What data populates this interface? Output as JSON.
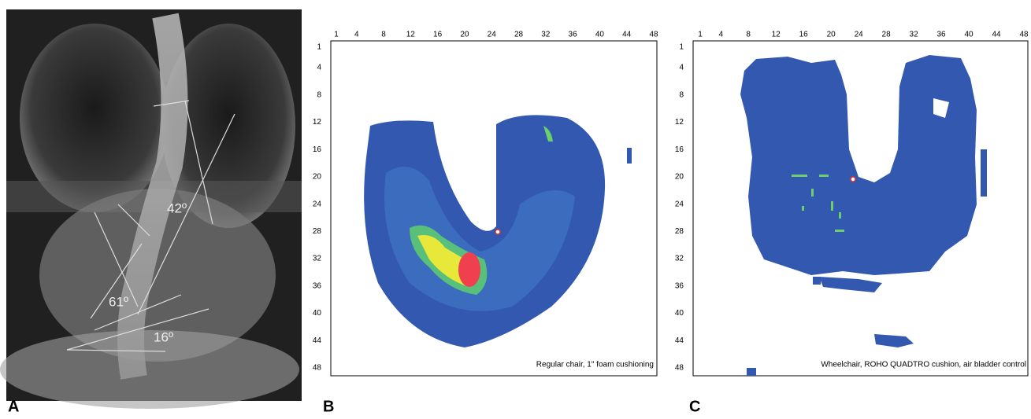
{
  "panels": [
    {
      "label": "A",
      "angles": [
        "42º",
        "61º",
        "16º"
      ]
    },
    {
      "label": "B",
      "caption": "Regular chair, 1\" foam cushioning",
      "xticks": [
        1,
        4,
        8,
        12,
        16,
        20,
        24,
        28,
        32,
        36,
        40,
        44,
        48
      ],
      "yticks": [
        1,
        4,
        8,
        12,
        16,
        20,
        24,
        28,
        32,
        36,
        40,
        44,
        48
      ]
    },
    {
      "label": "C",
      "caption": "Wheelchair, ROHO QUADTRO cushion, air bladder control",
      "xticks": [
        1,
        4,
        8,
        12,
        16,
        20,
        24,
        28,
        32,
        36,
        40,
        44,
        48
      ],
      "yticks": [
        1,
        4,
        8,
        12,
        16,
        20,
        24,
        28,
        32,
        36,
        40,
        44,
        48
      ]
    }
  ]
}
